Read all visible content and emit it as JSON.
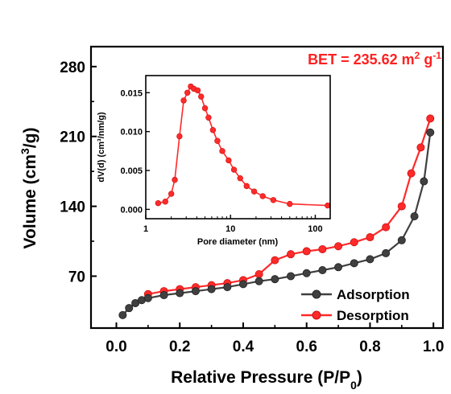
{
  "chart_data": [
    {
      "type": "line",
      "xlabel_main": "Relative Pressure (P/P",
      "xlabel_sub": "0",
      "xlabel_end": ")",
      "ylabel_main": "Volume (cm",
      "ylabel_sup": "3",
      "ylabel_end": "/g)",
      "xlim": [
        -0.08,
        1.03
      ],
      "ylim": [
        18,
        300
      ],
      "x_ticks": [
        0.0,
        0.2,
        0.4,
        0.6,
        0.8,
        1.0
      ],
      "x_tick_labels": [
        "0.0",
        "0.2",
        "0.4",
        "0.6",
        "0.8",
        "1.0"
      ],
      "y_ticks": [
        70,
        140,
        210,
        280
      ],
      "y_tick_labels": [
        "70",
        "140",
        "210",
        "280"
      ],
      "annotation": {
        "prefix": "BET = 235.62 m",
        "sup1": "2",
        "mid": " g",
        "sup2": "-1",
        "color": "#ff2020"
      },
      "legend_position": "bottom-right",
      "series": [
        {
          "name": "Adsorption",
          "color": "#404040",
          "x": [
            0.02,
            0.04,
            0.06,
            0.08,
            0.1,
            0.15,
            0.2,
            0.25,
            0.3,
            0.35,
            0.4,
            0.45,
            0.5,
            0.55,
            0.6,
            0.65,
            0.7,
            0.75,
            0.8,
            0.85,
            0.9,
            0.94,
            0.97,
            0.99
          ],
          "y": [
            31,
            38,
            43,
            46,
            48,
            51,
            53,
            55,
            57,
            59,
            62,
            65,
            67,
            70,
            73,
            76,
            79,
            83,
            87,
            93,
            106,
            130,
            165,
            214
          ]
        },
        {
          "name": "Desorption",
          "color": "#ff2a2a",
          "x": [
            0.99,
            0.96,
            0.93,
            0.9,
            0.85,
            0.8,
            0.75,
            0.7,
            0.65,
            0.6,
            0.55,
            0.5,
            0.45,
            0.4,
            0.35,
            0.3,
            0.25,
            0.2,
            0.15,
            0.1
          ],
          "y": [
            228,
            199,
            173,
            140,
            119,
            109,
            104,
            100,
            97,
            95,
            92,
            86,
            72,
            66,
            63,
            61,
            59,
            57,
            55,
            52
          ]
        }
      ]
    },
    {
      "type": "line",
      "xlabel": "Pore diameter (nm)",
      "ylabel": "dV(d) (cm³/nm/g)",
      "x_scale": "log",
      "xlim": [
        1,
        150
      ],
      "ylim": [
        -0.0012,
        0.0172
      ],
      "x_ticks": [
        1,
        10,
        100
      ],
      "x_tick_labels": [
        "1",
        "10",
        "100"
      ],
      "y_ticks": [
        0.0,
        0.005,
        0.01,
        0.015
      ],
      "y_tick_labels": [
        "0.000",
        "0.005",
        "0.010",
        "0.015"
      ],
      "series": [
        {
          "color": "#ff2a2a",
          "x": [
            1.4,
            1.7,
            2.0,
            2.2,
            2.5,
            2.8,
            3.1,
            3.4,
            3.7,
            4.1,
            4.5,
            5.0,
            5.5,
            6.2,
            7.0,
            8.0,
            9.5,
            11,
            13,
            15.5,
            19,
            24,
            32,
            50,
            140
          ],
          "y": [
            0.0008,
            0.001,
            0.002,
            0.0038,
            0.0094,
            0.014,
            0.015,
            0.0158,
            0.0155,
            0.0153,
            0.0145,
            0.013,
            0.0118,
            0.0102,
            0.0088,
            0.0075,
            0.0063,
            0.0051,
            0.004,
            0.003,
            0.0023,
            0.0017,
            0.0012,
            0.0007,
            0.0005
          ]
        }
      ]
    }
  ]
}
